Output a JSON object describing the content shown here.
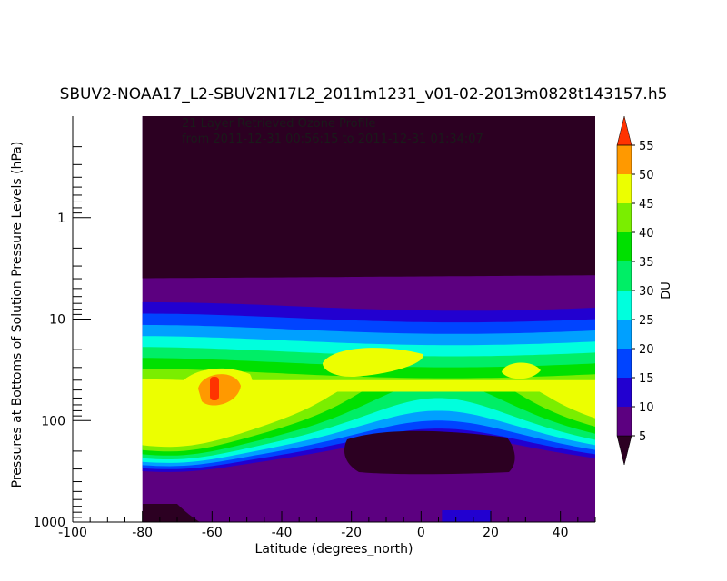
{
  "chart_data": {
    "type": "heatmap",
    "title": "SBUV2-NOAA17_L2-SBUV2N17L2_2011m1231_v01-02-2013m0828t143157.h5",
    "annotation_lines": [
      "21 Layer Retrieved Ozone Profile",
      "from 2011-12-31 00:56:15 to 2011-12-31 01:34:07"
    ],
    "xlabel": "Latitude (degrees_north)",
    "ylabel": "Pressures at Bottoms of Solution Pressure Levels (hPa)",
    "xlim": [
      -100,
      50
    ],
    "ylim": [
      1000,
      0.1
    ],
    "y_scale": "log",
    "x_ticks": [
      -100,
      -80,
      -60,
      -40,
      -20,
      0,
      20,
      40
    ],
    "y_ticks": [
      1,
      10,
      100,
      1000
    ],
    "data_x_range": [
      -80,
      50
    ],
    "colorbar": {
      "label": "DU",
      "levels": [
        5,
        10,
        15,
        20,
        25,
        30,
        35,
        40,
        45,
        50,
        55
      ],
      "colors": [
        "#2c0022",
        "#5c0080",
        "#2200d0",
        "#0044ff",
        "#00a0ff",
        "#00ffdd",
        "#00ee66",
        "#00e000",
        "#7aee00",
        "#ecff00",
        "#ff9900",
        "#ff3300"
      ]
    }
  }
}
